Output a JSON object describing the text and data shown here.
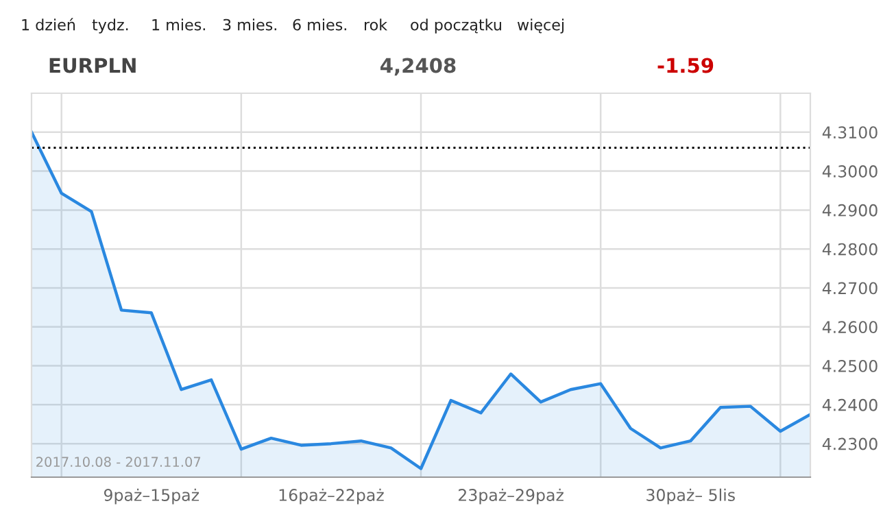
{
  "chart_data": {
    "type": "area",
    "title": "EURPLN",
    "annotations": [
      "1 dzień",
      "tydz.",
      "1 mies.",
      "3 mies.",
      "6 mies.",
      "rok",
      "od początku",
      "więcej",
      "4,2408",
      "-1.59",
      "2017.10.08 - 2017.11.07"
    ],
    "categories": [
      null,
      null,
      null,
      null,
      "9paż–15paż",
      null,
      null,
      null,
      null,
      null,
      "16paż–22paż",
      null,
      null,
      null,
      null,
      null,
      "23paż–29paż",
      null,
      null,
      null,
      null,
      null,
      "30paż– 5lis",
      null,
      null,
      null,
      null
    ],
    "series": [
      {
        "color": "#2a88e0",
        "values": [
          4.31,
          4.2943,
          4.2896,
          4.2643,
          4.2636,
          4.2439,
          4.2464,
          4.2286,
          4.2314,
          4.2296,
          4.23,
          4.2307,
          4.2289,
          4.2236,
          4.2411,
          4.2379,
          4.2479,
          4.2407,
          4.2439,
          4.2454,
          4.2339,
          4.2289,
          4.2307,
          4.2393,
          4.2396,
          4.2332,
          4.2375
        ]
      }
    ],
    "ylim": [
      4.2214,
      4.32
    ],
    "yticks": [
      {
        "value": 4.23,
        "label": "4.2300"
      },
      {
        "value": 4.24,
        "label": "4.2400"
      },
      {
        "value": 4.25,
        "label": "4.2500"
      },
      {
        "value": 4.26,
        "label": "4.2600"
      },
      {
        "value": 4.27,
        "label": "4.2700"
      },
      {
        "value": 4.28,
        "label": "4.2800"
      },
      {
        "value": 4.29,
        "label": "4.2900"
      },
      {
        "value": 4.3,
        "label": "4.3000"
      },
      {
        "value": 4.31,
        "label": "4.3100"
      }
    ],
    "ref_lines": [
      {
        "axis": "y",
        "value": 4.306,
        "color": "#000000",
        "line_style": "dotted"
      }
    ],
    "grid": true,
    "legend": false,
    "marker": "none",
    "line_style": "solid"
  }
}
